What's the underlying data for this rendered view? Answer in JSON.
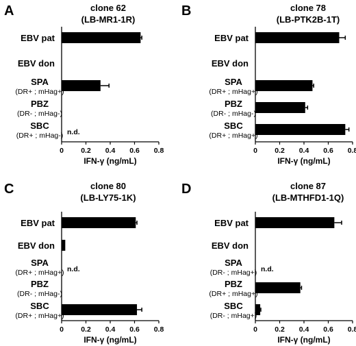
{
  "chart_data": [
    {
      "panel": "A",
      "type": "bar",
      "title": "clone 62",
      "subtitle": "(LB-MR1-1R)",
      "categories": [
        {
          "label": "EBV pat",
          "sublabel": ""
        },
        {
          "label": "EBV don",
          "sublabel": ""
        },
        {
          "label": "SPA",
          "sublabel": "(DR+ ; mHag+)"
        },
        {
          "label": "PBZ",
          "sublabel": "(DR- ; mHag-)"
        },
        {
          "label": "SBC",
          "sublabel": "(DR+ ; mHag-)"
        }
      ],
      "values": [
        0.65,
        0,
        0.32,
        null,
        null
      ],
      "errors": [
        0.01,
        0,
        0.07,
        null,
        null
      ],
      "nd": [
        false,
        false,
        false,
        false,
        true
      ],
      "nd_label": "n.d.",
      "xlabel": "IFN-γ (ng/mL)",
      "xlim": [
        0,
        0.8
      ],
      "xticks": [
        "0",
        "0.2",
        "0.4",
        "0.6",
        "0.8"
      ],
      "orientation": "horizontal"
    },
    {
      "panel": "B",
      "type": "bar",
      "title": "clone 78",
      "subtitle": "(LB-PTK2B-1T)",
      "categories": [
        {
          "label": "EBV pat",
          "sublabel": ""
        },
        {
          "label": "EBV don",
          "sublabel": ""
        },
        {
          "label": "SPA",
          "sublabel": "(DR+ ; mHag+)"
        },
        {
          "label": "PBZ",
          "sublabel": "(DR- ; mHag-)"
        },
        {
          "label": "SBC",
          "sublabel": "(DR+ ; mHag+)"
        }
      ],
      "values": [
        0.69,
        0,
        0.47,
        0.41,
        0.74
      ],
      "errors": [
        0.05,
        0,
        0.01,
        0.02,
        0.03
      ],
      "nd": [
        false,
        false,
        false,
        false,
        false
      ],
      "nd_label": "",
      "xlabel": "IFN-γ (ng/mL)",
      "xlim": [
        0,
        0.8
      ],
      "xticks": [
        "0",
        "0.2",
        "0.4",
        "0.6",
        "0.8"
      ],
      "orientation": "horizontal"
    },
    {
      "panel": "C",
      "type": "bar",
      "title": "clone 80",
      "subtitle": "(LB-LY75-1K)",
      "categories": [
        {
          "label": "EBV pat",
          "sublabel": ""
        },
        {
          "label": "EBV don",
          "sublabel": ""
        },
        {
          "label": "SPA",
          "sublabel": "(DR+ ; mHag+)"
        },
        {
          "label": "PBZ",
          "sublabel": "(DR- ; mHag-)"
        },
        {
          "label": "SBC",
          "sublabel": "(DR+ ; mHag+)"
        }
      ],
      "values": [
        0.61,
        0.03,
        null,
        null,
        0.62
      ],
      "errors": [
        0.01,
        0,
        null,
        null,
        0.04
      ],
      "nd": [
        false,
        false,
        true,
        false,
        false
      ],
      "nd_label": "n.d.",
      "xlabel": "IFN-γ (ng/mL)",
      "xlim": [
        0,
        0.8
      ],
      "xticks": [
        "0",
        "0.2",
        "0.4",
        "0.6",
        "0.8"
      ],
      "orientation": "horizontal"
    },
    {
      "panel": "D",
      "type": "bar",
      "title": "clone 87",
      "subtitle": "(LB-MTHFD1-1Q)",
      "categories": [
        {
          "label": "EBV pat",
          "sublabel": ""
        },
        {
          "label": "EBV don",
          "sublabel": ""
        },
        {
          "label": "SPA",
          "sublabel": "(DR- ; mHag+)"
        },
        {
          "label": "PBZ",
          "sublabel": "(DR+ ; mHag+)"
        },
        {
          "label": "SBC",
          "sublabel": "(DR- ; mHag+)"
        }
      ],
      "values": [
        0.65,
        0,
        null,
        0.37,
        0.04
      ],
      "errors": [
        0.06,
        0,
        null,
        0.01,
        0.005
      ],
      "nd": [
        false,
        false,
        true,
        false,
        false
      ],
      "nd_label": "n.d.",
      "xlabel": "IFN-γ (ng/mL)",
      "xlim": [
        0,
        0.8
      ],
      "xticks": [
        "0",
        "0.2",
        "0.4",
        "0.6",
        "0.8"
      ],
      "orientation": "horizontal"
    }
  ]
}
